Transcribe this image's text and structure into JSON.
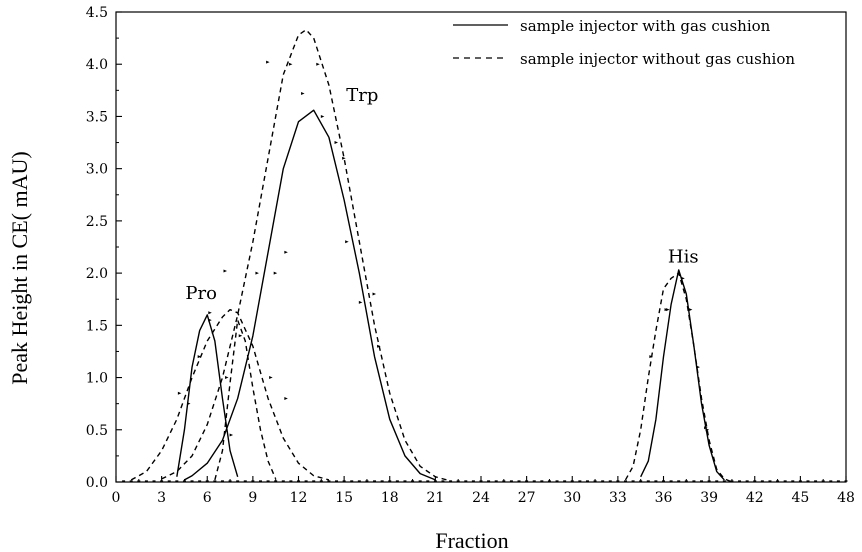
{
  "chart_data": {
    "type": "line",
    "xlabel": "Fraction",
    "ylabel": "Peak Height in CE(  mAU)",
    "xlim": [
      0,
      48
    ],
    "ylim": [
      0,
      4.5
    ],
    "xticks": [
      "0",
      "3",
      "6",
      "9",
      "12",
      "15",
      "18",
      "21",
      "24",
      "27",
      "30",
      "33",
      "36",
      "39",
      "42",
      "45",
      "48"
    ],
    "yticks": [
      "0.0",
      "0.5",
      "1.0",
      "1.5",
      "2.0",
      "2.5",
      "3.0",
      "3.5",
      "4.0",
      "4.5"
    ],
    "legend_position": "top-right",
    "grid": false,
    "annotations": [
      {
        "text": "Pro",
        "x": 5.6,
        "y": 1.75
      },
      {
        "text": "Trp",
        "x": 16.2,
        "y": 3.65
      },
      {
        "text": "His",
        "x": 37.3,
        "y": 2.1
      }
    ],
    "series": [
      {
        "name": "sample injector with gas cushion",
        "style": "solid",
        "segments": [
          {
            "x": [
              4,
              4.5,
              5,
              5.5,
              6,
              6.5,
              7,
              7.5,
              8
            ],
            "y": [
              0.05,
              0.5,
              1.1,
              1.45,
              1.6,
              1.35,
              0.8,
              0.3,
              0.05
            ]
          },
          {
            "x": [
              4.5,
              5,
              6,
              7,
              8,
              9,
              10,
              11,
              12,
              13,
              14,
              15,
              16,
              17,
              18,
              19,
              20,
              21
            ],
            "y": [
              0.02,
              0.06,
              0.18,
              0.4,
              0.8,
              1.4,
              2.2,
              3.0,
              3.45,
              3.56,
              3.3,
              2.7,
              2.0,
              1.2,
              0.6,
              0.25,
              0.08,
              0.02
            ]
          },
          {
            "x": [
              34.5,
              35,
              35.5,
              36,
              36.5,
              37,
              37.5,
              38,
              38.5,
              39,
              39.5,
              40
            ],
            "y": [
              0.05,
              0.2,
              0.6,
              1.2,
              1.7,
              2.03,
              1.8,
              1.3,
              0.75,
              0.35,
              0.1,
              0.02
            ]
          }
        ],
        "points": [
          {
            "x": 4.2,
            "y": 0.85
          },
          {
            "x": 5.5,
            "y": 1.2
          },
          {
            "x": 6.2,
            "y": 1.55
          },
          {
            "x": 7.3,
            "y": 1.0
          },
          {
            "x": 8.2,
            "y": 1.4
          },
          {
            "x": 10.5,
            "y": 2.0
          },
          {
            "x": 11.2,
            "y": 2.2
          },
          {
            "x": 12.3,
            "y": 3.72
          },
          {
            "x": 13.6,
            "y": 3.5
          },
          {
            "x": 14.5,
            "y": 3.25
          },
          {
            "x": 15.2,
            "y": 2.3
          },
          {
            "x": 16.1,
            "y": 1.72
          },
          {
            "x": 17.3,
            "y": 1.3
          },
          {
            "x": 35.2,
            "y": 1.2
          },
          {
            "x": 36.3,
            "y": 1.65
          },
          {
            "x": 37.3,
            "y": 1.95
          },
          {
            "x": 38.3,
            "y": 1.1
          },
          {
            "x": 38.8,
            "y": 0.52
          }
        ]
      },
      {
        "name": "sample injector without gas cushion",
        "style": "dashed",
        "segments": [
          {
            "x": [
              1,
              2,
              3,
              4,
              5,
              6,
              7,
              7.5,
              8,
              9,
              10,
              11,
              12,
              13,
              14
            ],
            "y": [
              0.02,
              0.1,
              0.3,
              0.6,
              1.0,
              1.35,
              1.58,
              1.65,
              1.62,
              1.3,
              0.8,
              0.42,
              0.18,
              0.06,
              0.02
            ]
          },
          {
            "x": [
              3,
              4,
              5,
              6,
              7,
              8,
              9,
              10,
              11,
              12,
              12.5,
              13,
              14,
              15,
              16,
              17,
              18,
              19,
              20,
              21,
              22
            ],
            "y": [
              0.03,
              0.1,
              0.25,
              0.55,
              1.0,
              1.6,
              2.3,
              3.1,
              3.9,
              4.28,
              4.33,
              4.25,
              3.8,
              3.1,
              2.3,
              1.5,
              0.85,
              0.4,
              0.15,
              0.05,
              0.01
            ]
          },
          {
            "x": [
              6.5,
              7,
              7.5,
              8,
              8.5,
              9,
              9.5,
              10,
              10.5
            ],
            "y": [
              0.02,
              0.3,
              0.95,
              1.55,
              1.35,
              0.9,
              0.5,
              0.2,
              0.03
            ]
          },
          {
            "x": [
              33.5,
              34,
              34.5,
              35,
              35.5,
              36,
              36.5,
              37,
              37.5,
              38,
              38.5,
              39,
              39.5,
              40,
              40.5
            ],
            "y": [
              0.02,
              0.15,
              0.5,
              1.0,
              1.45,
              1.85,
              1.95,
              2.0,
              1.75,
              1.3,
              0.8,
              0.4,
              0.12,
              0.03,
              0.0
            ]
          }
        ],
        "points": [
          {
            "x": 4.8,
            "y": 0.75
          },
          {
            "x": 6.2,
            "y": 1.62
          },
          {
            "x": 7.2,
            "y": 2.02
          },
          {
            "x": 7.6,
            "y": 0.45
          },
          {
            "x": 9.3,
            "y": 2.0
          },
          {
            "x": 10.0,
            "y": 4.02
          },
          {
            "x": 11.5,
            "y": 4.0
          },
          {
            "x": 13.3,
            "y": 4.0
          },
          {
            "x": 15.0,
            "y": 3.1
          },
          {
            "x": 17.0,
            "y": 1.8
          },
          {
            "x": 10.2,
            "y": 1.0
          },
          {
            "x": 11.2,
            "y": 0.8
          },
          {
            "x": 36.2,
            "y": 1.65
          },
          {
            "x": 37.8,
            "y": 1.65
          },
          {
            "x": 38.9,
            "y": 0.5
          }
        ]
      }
    ],
    "baseline_markers": {
      "x_start": 0.5,
      "x_end": 48,
      "step": 0.5
    }
  }
}
